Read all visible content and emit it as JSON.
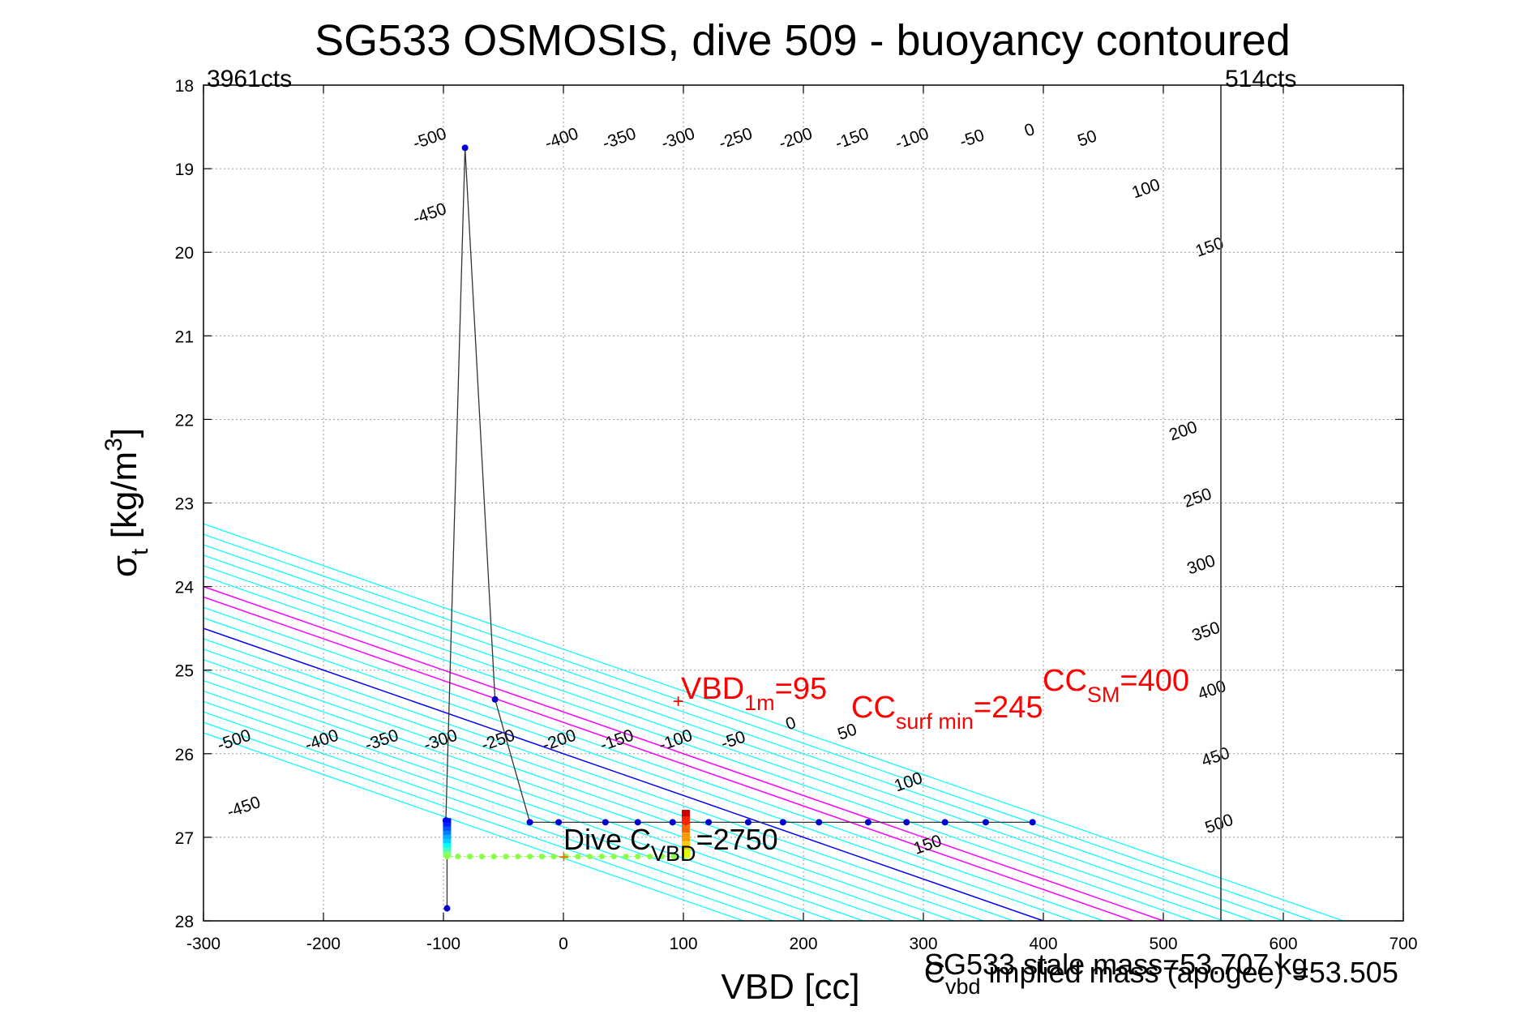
{
  "chart_data": {
    "type": "line",
    "title": "SG533 OSMOSIS, dive 509 - buoyancy contoured",
    "xlabel": "VBD [cc]",
    "ylabel_main": "σ",
    "ylabel_sub": "t",
    "ylabel_units_pre": " [kg/m",
    "ylabel_units_sup": "3",
    "ylabel_units_post": "]",
    "xlim": [
      -300,
      700
    ],
    "ylim": [
      18,
      28
    ],
    "y_reversed": true,
    "grid": true,
    "xticks": [
      -300,
      -200,
      -100,
      0,
      100,
      200,
      300,
      400,
      500,
      600,
      700
    ],
    "yticks": [
      18,
      19,
      20,
      21,
      22,
      23,
      24,
      25,
      26,
      27,
      28
    ],
    "left_cts_label": "3961cts",
    "right_cts_label": "514cts",
    "right_cts_vbd": 548,
    "contour_slope_cc_per_sigma": 200,
    "contours": [
      {
        "level": -500,
        "vbd_at_sigma26": -250,
        "color": "#00ffff"
      },
      {
        "level": -450,
        "vbd_at_sigma26": -225,
        "color": "#00ffff"
      },
      {
        "level": -400,
        "vbd_at_sigma26": -200,
        "color": "#00ffff"
      },
      {
        "level": -350,
        "vbd_at_sigma26": -175,
        "color": "#00ffff"
      },
      {
        "level": -300,
        "vbd_at_sigma26": -150,
        "color": "#00ffff"
      },
      {
        "level": -250,
        "vbd_at_sigma26": -125,
        "color": "#00ffff"
      },
      {
        "level": -200,
        "vbd_at_sigma26": -100,
        "color": "#00ffff"
      },
      {
        "level": -150,
        "vbd_at_sigma26": -75,
        "color": "#00ffff"
      },
      {
        "level": -100,
        "vbd_at_sigma26": -50,
        "color": "#00ffff"
      },
      {
        "level": -50,
        "vbd_at_sigma26": -25,
        "color": "#00ffff"
      },
      {
        "level": 0,
        "vbd_at_sigma26": 0,
        "color": "#0000ff"
      },
      {
        "level": 50,
        "vbd_at_sigma26": 25,
        "color": "#00ffff"
      },
      {
        "level": 100,
        "vbd_at_sigma26": 50,
        "color": "#00ffff"
      },
      {
        "level": 150,
        "vbd_at_sigma26": 75,
        "color": "#00ffff"
      },
      {
        "level": 200,
        "vbd_at_sigma26": 100,
        "color": "#00ffff"
      },
      {
        "level": 250,
        "vbd_at_sigma26": 125,
        "color": "#00ffff"
      },
      {
        "level": 300,
        "vbd_at_sigma26": 150,
        "color": "#00ffff"
      },
      {
        "level": 350,
        "vbd_at_sigma26": 175,
        "color": "#00ffff"
      },
      {
        "level": 400,
        "vbd_at_sigma26": 200,
        "color": "#00ffff"
      },
      {
        "level": 450,
        "vbd_at_sigma26": 225,
        "color": "#00ffff"
      },
      {
        "level": 500,
        "vbd_at_sigma26": 250,
        "color": "#00ffff"
      }
    ],
    "special_lines": [
      {
        "name": "CC_surf_min",
        "vbd_at_sigma26": 75,
        "color": "#ff00ff"
      },
      {
        "name": "CC_SM",
        "vbd_at_sigma26": 100,
        "color": "#ff00ff"
      }
    ],
    "contour_labels_top": [
      {
        "text": "-500",
        "x": -110,
        "y": 18.7
      },
      {
        "text": "-450",
        "x": -110,
        "y": 19.6
      },
      {
        "text": "-400",
        "x": 0,
        "y": 18.7
      },
      {
        "text": "-350",
        "x": 48,
        "y": 18.7
      },
      {
        "text": "-300",
        "x": 97,
        "y": 18.7
      },
      {
        "text": "-250",
        "x": 145,
        "y": 18.7
      },
      {
        "text": "-200",
        "x": 195,
        "y": 18.7
      },
      {
        "text": "-150",
        "x": 242,
        "y": 18.7
      },
      {
        "text": "-100",
        "x": 292,
        "y": 18.7
      },
      {
        "text": "-50",
        "x": 342,
        "y": 18.7
      },
      {
        "text": "0",
        "x": 390,
        "y": 18.6
      },
      {
        "text": "50",
        "x": 438,
        "y": 18.7
      },
      {
        "text": "100",
        "x": 487,
        "y": 19.3
      },
      {
        "text": "150",
        "x": 540,
        "y": 20.0
      }
    ],
    "contour_labels_right": [
      {
        "text": "200",
        "x": 518,
        "y": 22.2
      },
      {
        "text": "250",
        "x": 530,
        "y": 23.0
      },
      {
        "text": "300",
        "x": 533,
        "y": 23.8
      },
      {
        "text": "350",
        "x": 537,
        "y": 24.6
      },
      {
        "text": "400",
        "x": 542,
        "y": 25.3
      },
      {
        "text": "450",
        "x": 545,
        "y": 26.1
      },
      {
        "text": "500",
        "x": 548,
        "y": 26.9
      }
    ],
    "contour_labels_bottom": [
      {
        "text": "-500",
        "x": -273,
        "y": 25.9
      },
      {
        "text": "-450",
        "x": -265,
        "y": 26.7
      },
      {
        "text": "-400",
        "x": -200,
        "y": 25.9
      },
      {
        "text": "-350",
        "x": -150,
        "y": 25.9
      },
      {
        "text": "-300",
        "x": -101,
        "y": 25.9
      },
      {
        "text": "-250",
        "x": -53,
        "y": 25.9
      },
      {
        "text": "-200",
        "x": -2,
        "y": 25.9
      },
      {
        "text": "-150",
        "x": 46,
        "y": 25.9
      },
      {
        "text": "-100",
        "x": 95,
        "y": 25.9
      },
      {
        "text": "-50",
        "x": 143,
        "y": 25.9
      },
      {
        "text": "0",
        "x": 191,
        "y": 25.7
      },
      {
        "text": "50",
        "x": 238,
        "y": 25.8
      },
      {
        "text": "100",
        "x": 289,
        "y": 26.4
      },
      {
        "text": "150",
        "x": 305,
        "y": 27.15
      }
    ],
    "dive_profile": [
      {
        "x": -97,
        "y": 27.85
      },
      {
        "x": -97,
        "y": 27.2
      },
      {
        "x": -98,
        "y": 26.8
      },
      {
        "x": -82,
        "y": 18.75
      },
      {
        "x": -57,
        "y": 25.35
      },
      {
        "x": -28,
        "y": 26.82
      },
      {
        "x": -4,
        "y": 26.82
      },
      {
        "x": 35,
        "y": 26.82
      },
      {
        "x": 62,
        "y": 26.82
      },
      {
        "x": 91,
        "y": 26.82
      },
      {
        "x": 102,
        "y": 26.82
      },
      {
        "x": 121,
        "y": 26.82
      },
      {
        "x": 154,
        "y": 26.82
      },
      {
        "x": 183,
        "y": 26.82
      },
      {
        "x": 213,
        "y": 26.82
      },
      {
        "x": 254,
        "y": 26.82
      },
      {
        "x": 286,
        "y": 26.82
      },
      {
        "x": 318,
        "y": 26.82
      },
      {
        "x": 352,
        "y": 26.82
      },
      {
        "x": 391,
        "y": 26.82
      }
    ],
    "colored_points": [
      {
        "x": -97,
        "y": 27.23
      },
      {
        "x": -88,
        "y": 27.23
      },
      {
        "x": -78,
        "y": 27.23
      },
      {
        "x": -68,
        "y": 27.23
      },
      {
        "x": -58,
        "y": 27.23
      },
      {
        "x": -48,
        "y": 27.23
      },
      {
        "x": -38,
        "y": 27.23
      },
      {
        "x": -28,
        "y": 27.23
      },
      {
        "x": -18,
        "y": 27.23
      },
      {
        "x": -8,
        "y": 27.23
      },
      {
        "x": 2,
        "y": 27.23
      },
      {
        "x": 12,
        "y": 27.23
      },
      {
        "x": 22,
        "y": 27.23
      },
      {
        "x": 32,
        "y": 27.23
      },
      {
        "x": 42,
        "y": 27.23
      },
      {
        "x": 52,
        "y": 27.23
      },
      {
        "x": 62,
        "y": 27.23
      },
      {
        "x": 72,
        "y": 27.23
      },
      {
        "x": 82,
        "y": 27.23
      },
      {
        "x": 92,
        "y": 27.23
      }
    ],
    "vbd1m_marker": {
      "x": 95,
      "y": 25.37
    },
    "dive_c_marker": {
      "x": 0,
      "y": 27.23
    },
    "annotations": {
      "vbd1m_main": "VBD",
      "vbd1m_sub": "1m",
      "vbd1m_val": "=95",
      "ccsurf_main": "CC",
      "ccsurf_sub": "surf min",
      "ccsurf_val": "=245",
      "ccsm_main": "CC",
      "ccsm_sub": "SM",
      "ccsm_val": "=400",
      "divec_main": "Dive C",
      "divec_sub": "VBD",
      "divec_val": "=2750",
      "stale_mass_a": "SG533 stale mass=53.707 kg",
      "stale_mass_b": "C",
      "stale_mass_sub": "vbd",
      "stale_mass_c": " implied mass (apogee) =53.505"
    }
  }
}
